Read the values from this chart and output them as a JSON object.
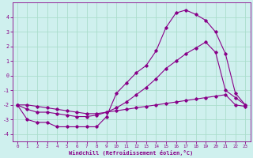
{
  "title": "",
  "xlabel": "Windchill (Refroidissement éolien,°C)",
  "background_color": "#cff0ee",
  "grid_color": "#aaddcc",
  "line_color": "#880088",
  "xlim": [
    -0.5,
    23.5
  ],
  "ylim": [
    -4.5,
    5.0
  ],
  "yticks": [
    -4,
    -3,
    -2,
    -1,
    0,
    1,
    2,
    3,
    4
  ],
  "xticks": [
    0,
    1,
    2,
    3,
    4,
    5,
    6,
    7,
    8,
    9,
    10,
    11,
    12,
    13,
    14,
    15,
    16,
    17,
    18,
    19,
    20,
    21,
    22,
    23
  ],
  "series1_x": [
    0,
    1,
    2,
    3,
    4,
    5,
    6,
    7,
    8,
    9,
    10,
    11,
    12,
    13,
    14,
    15,
    16,
    17,
    18,
    19,
    20,
    21,
    22,
    23
  ],
  "series1_y": [
    -2.0,
    -3.0,
    -3.2,
    -3.2,
    -3.5,
    -3.5,
    -3.5,
    -3.5,
    -3.5,
    -2.8,
    -1.2,
    -0.5,
    0.2,
    0.7,
    1.7,
    3.3,
    4.3,
    4.5,
    4.2,
    3.8,
    3.0,
    1.5,
    -1.2,
    -2.0
  ],
  "series2_x": [
    0,
    1,
    2,
    3,
    4,
    5,
    6,
    7,
    8,
    9,
    10,
    11,
    12,
    13,
    14,
    15,
    16,
    17,
    18,
    19,
    20,
    21,
    22,
    23
  ],
  "series2_y": [
    -2.0,
    -2.3,
    -2.5,
    -2.5,
    -2.6,
    -2.7,
    -2.8,
    -2.8,
    -2.7,
    -2.5,
    -2.2,
    -1.8,
    -1.3,
    -0.8,
    -0.2,
    0.5,
    1.0,
    1.5,
    1.9,
    2.3,
    1.6,
    -1.0,
    -1.5,
    -2.0
  ],
  "series3_x": [
    0,
    1,
    2,
    3,
    4,
    5,
    6,
    7,
    8,
    9,
    10,
    11,
    12,
    13,
    14,
    15,
    16,
    17,
    18,
    19,
    20,
    21,
    22,
    23
  ],
  "series3_y": [
    -2.0,
    -2.0,
    -2.1,
    -2.2,
    -2.3,
    -2.4,
    -2.5,
    -2.6,
    -2.6,
    -2.5,
    -2.4,
    -2.3,
    -2.2,
    -2.1,
    -2.0,
    -1.9,
    -1.8,
    -1.7,
    -1.6,
    -1.5,
    -1.4,
    -1.3,
    -2.0,
    -2.1
  ]
}
